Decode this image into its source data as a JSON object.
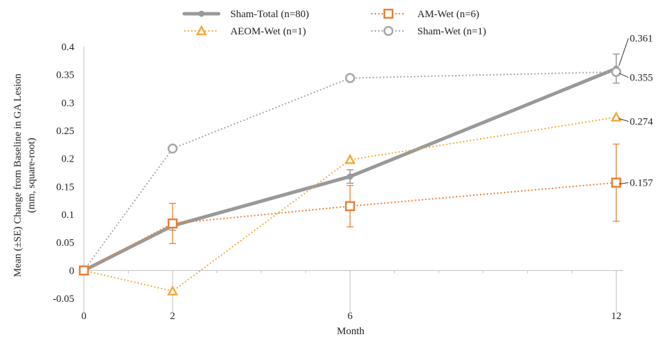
{
  "chart_data": {
    "type": "line",
    "xlabel": "Month",
    "ylabel_line1": "Mean (±SE) Change from Baseline in GA Lesion",
    "ylabel_line2": "(mm, square-root)",
    "x_ticks": [
      "0",
      "2",
      "6",
      "12"
    ],
    "y_ticks": [
      "-0.05",
      "0",
      "0.05",
      "0.1",
      "0.15",
      "0.2",
      "0.25",
      "0.3",
      "0.35",
      "0.4"
    ],
    "ylim": [
      -0.05,
      0.4
    ],
    "grid": false,
    "legend_position": "top",
    "series": [
      {
        "name": "Sham-Total (n=80)",
        "style": "solid-thick",
        "color": "#999999",
        "marker": "dot",
        "points": [
          {
            "x": 0,
            "y": 0
          },
          {
            "x": 2,
            "y": 0.08,
            "se": 0.008
          },
          {
            "x": 6,
            "y": 0.168,
            "se": 0.012
          },
          {
            "x": 12,
            "y": 0.361,
            "se": 0.026
          }
        ]
      },
      {
        "name": "AM-Wet (n=6)",
        "style": "dotted",
        "color": "#ED7D31",
        "marker": "square",
        "points": [
          {
            "x": 0,
            "y": 0
          },
          {
            "x": 2,
            "y": 0.084,
            "se": 0.036
          },
          {
            "x": 6,
            "y": 0.115,
            "se": 0.037
          },
          {
            "x": 12,
            "y": 0.157,
            "se": 0.069
          }
        ]
      },
      {
        "name": "AEOM-Wet (n=1)",
        "style": "dotted",
        "color": "#F2A93B",
        "marker": "triangle",
        "points": [
          {
            "x": 0,
            "y": 0
          },
          {
            "x": 2,
            "y": -0.037
          },
          {
            "x": 6,
            "y": 0.198
          },
          {
            "x": 12,
            "y": 0.274
          }
        ]
      },
      {
        "name": "Sham-Wet (n=1)",
        "style": "dotted",
        "color": "#A6A6A6",
        "marker": "circle",
        "points": [
          {
            "x": 0,
            "y": 0
          },
          {
            "x": 2,
            "y": 0.218
          },
          {
            "x": 6,
            "y": 0.344
          },
          {
            "x": 12,
            "y": 0.355
          }
        ]
      }
    ],
    "annotations": [
      {
        "text": "0.361",
        "series": "Sham-Total (n=80)"
      },
      {
        "text": "0.355",
        "series": "Sham-Wet (n=1)"
      },
      {
        "text": "0.274",
        "series": "AEOM-Wet (n=1)"
      },
      {
        "text": "0.157",
        "series": "AM-Wet (n=6)"
      }
    ]
  }
}
